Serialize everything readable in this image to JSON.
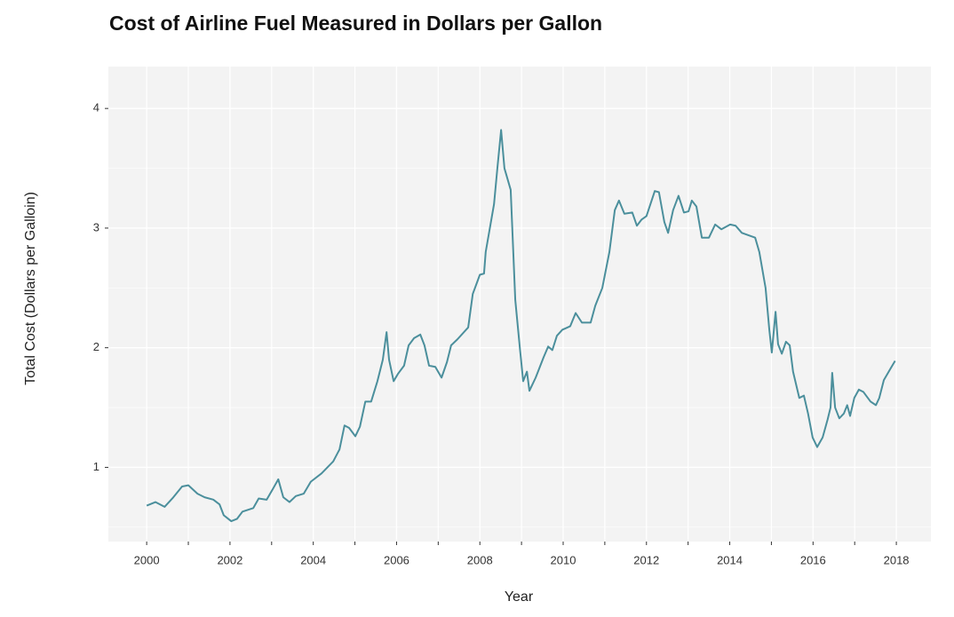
{
  "chart_data": {
    "type": "line",
    "title": "Cost of Airline Fuel Measured in Dollars per Gallon",
    "x_label": "Year",
    "y_label": "Total Cost (Dollars per Galloin)",
    "color": "#4b8f9c",
    "grid": true,
    "xlim": [
      1999.08,
      2018.83
    ],
    "ylim": [
      0.38,
      4.35
    ],
    "xticks": [
      2000,
      2002,
      2004,
      2006,
      2008,
      2010,
      2012,
      2014,
      2016,
      2018
    ],
    "xminor": [
      2001,
      2003,
      2005,
      2007,
      2009,
      2011,
      2013,
      2015,
      2017
    ],
    "yticks": [
      1,
      2,
      3,
      4
    ],
    "yminor": [
      0.5,
      1.5,
      2.5,
      3.5
    ],
    "x": [
      2000.0,
      2000.21,
      2000.43,
      2000.64,
      2000.85,
      2001.0,
      2001.22,
      2001.39,
      2001.6,
      2001.75,
      2001.85,
      2002.03,
      2002.17,
      2002.3,
      2002.56,
      2002.69,
      2002.88,
      2003.03,
      2003.16,
      2003.28,
      2003.43,
      2003.58,
      2003.77,
      2003.94,
      2004.2,
      2004.48,
      2004.63,
      2004.75,
      2004.86,
      2005.01,
      2005.12,
      2005.25,
      2005.39,
      2005.54,
      2005.67,
      2005.76,
      2005.82,
      2005.93,
      2006.03,
      2006.18,
      2006.29,
      2006.42,
      2006.57,
      2006.67,
      2006.78,
      2006.93,
      2007.08,
      2007.21,
      2007.31,
      2007.46,
      2007.72,
      2007.83,
      2008.0,
      2008.1,
      2008.14,
      2008.34,
      2008.42,
      2008.51,
      2008.59,
      2008.74,
      2008.85,
      2008.96,
      2009.04,
      2009.13,
      2009.19,
      2009.34,
      2009.53,
      2009.64,
      2009.74,
      2009.85,
      2009.98,
      2010.17,
      2010.3,
      2010.45,
      2010.66,
      2010.77,
      2010.94,
      2011.11,
      2011.24,
      2011.34,
      2011.47,
      2011.66,
      2011.77,
      2011.88,
      2012.0,
      2012.2,
      2012.3,
      2012.43,
      2012.52,
      2012.64,
      2012.77,
      2012.9,
      2013.01,
      2013.09,
      2013.2,
      2013.33,
      2013.5,
      2013.65,
      2013.8,
      2014.01,
      2014.14,
      2014.29,
      2014.61,
      2014.71,
      2014.86,
      2014.95,
      2015.01,
      2015.1,
      2015.16,
      2015.25,
      2015.35,
      2015.44,
      2015.52,
      2015.67,
      2015.78,
      2015.88,
      2015.99,
      2016.1,
      2016.23,
      2016.35,
      2016.42,
      2016.46,
      2016.53,
      2016.63,
      2016.74,
      2016.82,
      2016.89,
      2016.99,
      2017.1,
      2017.21,
      2017.38,
      2017.51,
      2017.59,
      2017.7,
      2017.85,
      2017.97
    ],
    "values": [
      0.68,
      0.71,
      0.67,
      0.75,
      0.84,
      0.85,
      0.78,
      0.75,
      0.73,
      0.69,
      0.6,
      0.55,
      0.57,
      0.63,
      0.66,
      0.74,
      0.73,
      0.82,
      0.9,
      0.75,
      0.71,
      0.76,
      0.78,
      0.88,
      0.95,
      1.05,
      1.15,
      1.35,
      1.33,
      1.26,
      1.34,
      1.55,
      1.55,
      1.72,
      1.9,
      2.13,
      1.9,
      1.72,
      1.78,
      1.85,
      2.02,
      2.08,
      2.11,
      2.02,
      1.85,
      1.84,
      1.75,
      1.88,
      2.02,
      2.07,
      2.17,
      2.45,
      2.61,
      2.62,
      2.8,
      3.2,
      3.5,
      3.82,
      3.5,
      3.32,
      2.4,
      2.0,
      1.72,
      1.8,
      1.64,
      1.75,
      1.92,
      2.01,
      1.98,
      2.1,
      2.15,
      2.18,
      2.29,
      2.21,
      2.21,
      2.35,
      2.5,
      2.8,
      3.15,
      3.23,
      3.12,
      3.13,
      3.02,
      3.07,
      3.1,
      3.31,
      3.3,
      3.05,
      2.96,
      3.15,
      3.27,
      3.13,
      3.14,
      3.23,
      3.18,
      2.92,
      2.92,
      3.03,
      2.99,
      3.03,
      3.02,
      2.96,
      2.92,
      2.8,
      2.5,
      2.15,
      1.96,
      2.3,
      2.03,
      1.95,
      2.05,
      2.02,
      1.8,
      1.58,
      1.6,
      1.45,
      1.25,
      1.17,
      1.25,
      1.4,
      1.5,
      1.79,
      1.5,
      1.41,
      1.45,
      1.52,
      1.43,
      1.58,
      1.65,
      1.63,
      1.55,
      1.52,
      1.58,
      1.73,
      1.82,
      1.89
    ]
  }
}
